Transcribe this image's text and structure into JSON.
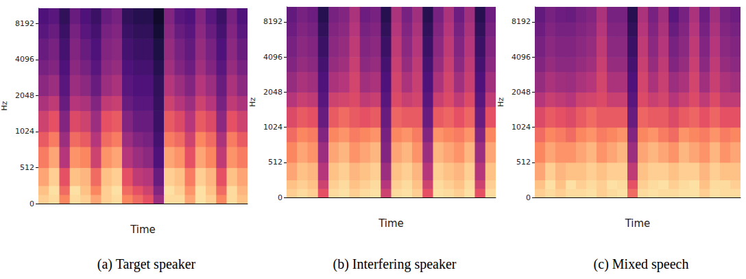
{
  "chart_data": [
    {
      "type": "heatmap",
      "title": "(a) Target speaker",
      "xlabel": "Time",
      "ylabel": "Hz",
      "log": "y",
      "tick_labels": "y",
      "color": "magma",
      "xlim": [
        0,
        20
      ],
      "ylim": [
        0,
        11025
      ],
      "yticks": [
        0,
        512,
        1024,
        2048,
        4096,
        8192
      ],
      "zlim": [
        -80,
        0
      ],
      "time_bins": [
        0,
        1,
        2,
        3,
        4,
        5,
        6,
        7,
        8,
        9,
        10,
        11,
        12,
        13,
        14,
        15,
        16,
        17,
        18,
        19,
        20
      ],
      "freq_bins": [
        0,
        128,
        256,
        512,
        768,
        1024,
        1536,
        2048,
        3072,
        4096,
        6144,
        8192,
        11025
      ],
      "cells": [
        [
          -8,
          -6,
          -20,
          -6,
          -8,
          -15,
          -8,
          -6,
          -20,
          -25,
          -30,
          -45,
          -6,
          -6,
          -15,
          -5,
          -8,
          -20,
          -6,
          -10
        ],
        [
          -10,
          -5,
          -25,
          -5,
          -10,
          -20,
          -8,
          -5,
          -25,
          -30,
          -35,
          -50,
          -5,
          -8,
          -18,
          -5,
          -10,
          -25,
          -6,
          -12
        ],
        [
          -15,
          -8,
          -30,
          -10,
          -12,
          -25,
          -10,
          -8,
          -30,
          -38,
          -40,
          -55,
          -8,
          -10,
          -22,
          -8,
          -12,
          -30,
          -10,
          -15
        ],
        [
          -22,
          -15,
          -40,
          -18,
          -20,
          -35,
          -18,
          -15,
          -40,
          -45,
          -48,
          -60,
          -15,
          -18,
          -30,
          -15,
          -20,
          -38,
          -18,
          -22
        ],
        [
          -28,
          -22,
          -45,
          -25,
          -28,
          -40,
          -25,
          -22,
          -45,
          -50,
          -52,
          -62,
          -22,
          -25,
          -35,
          -20,
          -25,
          -42,
          -22,
          -28
        ],
        [
          -35,
          -30,
          -50,
          -32,
          -35,
          -45,
          -30,
          -28,
          -50,
          -55,
          -55,
          -64,
          -28,
          -32,
          -40,
          -28,
          -32,
          -48,
          -30,
          -35
        ],
        [
          -42,
          -38,
          -55,
          -40,
          -42,
          -50,
          -38,
          -36,
          -55,
          -58,
          -58,
          -65,
          -35,
          -40,
          -45,
          -35,
          -40,
          -52,
          -38,
          -42
        ],
        [
          -48,
          -45,
          -58,
          -45,
          -48,
          -55,
          -45,
          -42,
          -58,
          -60,
          -60,
          -66,
          -40,
          -45,
          -50,
          -40,
          -45,
          -55,
          -42,
          -48
        ],
        [
          -52,
          -50,
          -60,
          -48,
          -52,
          -58,
          -48,
          -46,
          -60,
          -62,
          -62,
          -68,
          -44,
          -50,
          -54,
          -44,
          -50,
          -58,
          -46,
          -52
        ],
        [
          -55,
          -52,
          -62,
          -50,
          -55,
          -60,
          -50,
          -48,
          -62,
          -64,
          -64,
          -70,
          -46,
          -52,
          -56,
          -46,
          -52,
          -60,
          -48,
          -55
        ],
        [
          -58,
          -55,
          -64,
          -52,
          -58,
          -62,
          -52,
          -50,
          -64,
          -66,
          -66,
          -72,
          -48,
          -55,
          -58,
          -48,
          -55,
          -62,
          -50,
          -58
        ],
        [
          -60,
          -58,
          -66,
          -55,
          -60,
          -64,
          -55,
          -52,
          -66,
          -68,
          -68,
          -74,
          -50,
          -58,
          -60,
          -50,
          -58,
          -64,
          -52,
          -60
        ]
      ]
    },
    {
      "type": "heatmap",
      "title": "(b) Interfering speaker",
      "xlabel": "Time",
      "ylabel": "Hz",
      "log": "y",
      "tick_labels": "y",
      "color": "magma",
      "xlim": [
        0,
        20
      ],
      "ylim": [
        0,
        11025
      ],
      "yticks": [
        0,
        512,
        1024,
        2048,
        4096,
        8192
      ],
      "zlim": [
        -80,
        0
      ],
      "time_bins": [
        0,
        1,
        2,
        3,
        4,
        5,
        6,
        7,
        8,
        9,
        10,
        11,
        12,
        13,
        14,
        15,
        16,
        17,
        18,
        19,
        20
      ],
      "freq_bins": [
        0,
        128,
        256,
        512,
        768,
        1024,
        1536,
        2048,
        3072,
        4096,
        6144,
        8192,
        11025
      ],
      "cells": [
        [
          -8,
          -6,
          -8,
          -30,
          -6,
          -5,
          -8,
          -6,
          -5,
          -35,
          -6,
          -5,
          -8,
          -30,
          -5,
          -6,
          -8,
          -5,
          -30,
          -6
        ],
        [
          -10,
          -8,
          -10,
          -35,
          -8,
          -6,
          -10,
          -8,
          -6,
          -40,
          -8,
          -6,
          -10,
          -35,
          -6,
          -8,
          -10,
          -6,
          -35,
          -8
        ],
        [
          -15,
          -10,
          -12,
          -40,
          -10,
          -8,
          -12,
          -10,
          -8,
          -45,
          -10,
          -8,
          -12,
          -40,
          -8,
          -10,
          -12,
          -8,
          -40,
          -10
        ],
        [
          -20,
          -15,
          -18,
          -45,
          -15,
          -12,
          -18,
          -15,
          -12,
          -50,
          -15,
          -12,
          -18,
          -45,
          -12,
          -15,
          -18,
          -12,
          -45,
          -15
        ],
        [
          -25,
          -20,
          -22,
          -50,
          -20,
          -18,
          -22,
          -20,
          -18,
          -52,
          -20,
          -18,
          -22,
          -50,
          -18,
          -20,
          -22,
          -18,
          -50,
          -20
        ],
        [
          -32,
          -28,
          -30,
          -55,
          -28,
          -25,
          -28,
          -30,
          -28,
          -55,
          -26,
          -28,
          -28,
          -55,
          -28,
          -26,
          -30,
          -26,
          -55,
          -30
        ],
        [
          -40,
          -36,
          -38,
          -58,
          -35,
          -34,
          -32,
          -38,
          -36,
          -58,
          -32,
          -36,
          -34,
          -58,
          -36,
          -32,
          -38,
          -32,
          -58,
          -38
        ],
        [
          -46,
          -42,
          -44,
          -60,
          -42,
          -40,
          -34,
          -44,
          -42,
          -60,
          -34,
          -42,
          -36,
          -60,
          -42,
          -34,
          -44,
          -36,
          -60,
          -44
        ],
        [
          -50,
          -46,
          -48,
          -62,
          -46,
          -44,
          -36,
          -48,
          -46,
          -62,
          -36,
          -46,
          -38,
          -62,
          -46,
          -36,
          -48,
          -38,
          -62,
          -48
        ],
        [
          -52,
          -48,
          -50,
          -64,
          -48,
          -46,
          -38,
          -50,
          -48,
          -64,
          -38,
          -48,
          -40,
          -64,
          -48,
          -38,
          -50,
          -40,
          -64,
          -50
        ],
        [
          -54,
          -50,
          -52,
          -66,
          -50,
          -48,
          -40,
          -52,
          -50,
          -66,
          -40,
          -50,
          -42,
          -66,
          -50,
          -40,
          -52,
          -42,
          -66,
          -52
        ],
        [
          -56,
          -52,
          -54,
          -68,
          -52,
          -50,
          -42,
          -54,
          -52,
          -68,
          -42,
          -52,
          -44,
          -68,
          -52,
          -42,
          -54,
          -44,
          -68,
          -54
        ]
      ]
    },
    {
      "type": "heatmap",
      "title": "(c) Mixed speech",
      "xlabel": "Time",
      "ylabel": "Hz",
      "log": "y",
      "tick_labels": "y",
      "color": "magma",
      "xlim": [
        0,
        20
      ],
      "ylim": [
        0,
        11025
      ],
      "yticks": [
        0,
        512,
        1024,
        2048,
        4096,
        8192
      ],
      "zlim": [
        -80,
        0
      ],
      "time_bins": [
        0,
        1,
        2,
        3,
        4,
        5,
        6,
        7,
        8,
        9,
        10,
        11,
        12,
        13,
        14,
        15,
        16,
        17,
        18,
        19,
        20
      ],
      "freq_bins": [
        0,
        128,
        256,
        512,
        768,
        1024,
        1536,
        2048,
        3072,
        4096,
        6144,
        8192,
        11025
      ],
      "cells": [
        [
          -8,
          -6,
          -8,
          -6,
          -6,
          -5,
          -8,
          -6,
          -5,
          -25,
          -6,
          -5,
          -6,
          -6,
          -5,
          -5,
          -8,
          -5,
          -6,
          -6
        ],
        [
          -10,
          -5,
          -10,
          -5,
          -8,
          -6,
          -8,
          -5,
          -6,
          -30,
          -8,
          -6,
          -5,
          -8,
          -6,
          -5,
          -10,
          -6,
          -6,
          -8
        ],
        [
          -15,
          -8,
          -12,
          -10,
          -10,
          -8,
          -10,
          -8,
          -8,
          -38,
          -10,
          -8,
          -8,
          -10,
          -8,
          -8,
          -12,
          -8,
          -10,
          -10
        ],
        [
          -20,
          -15,
          -18,
          -18,
          -15,
          -12,
          -18,
          -15,
          -12,
          -45,
          -15,
          -12,
          -15,
          -18,
          -12,
          -15,
          -18,
          -12,
          -18,
          -15
        ],
        [
          -25,
          -20,
          -22,
          -25,
          -20,
          -18,
          -22,
          -20,
          -18,
          -50,
          -20,
          -18,
          -22,
          -25,
          -18,
          -20,
          -22,
          -18,
          -22,
          -20
        ],
        [
          -32,
          -28,
          -30,
          -32,
          -28,
          -25,
          -28,
          -28,
          -28,
          -55,
          -26,
          -28,
          -28,
          -32,
          -28,
          -26,
          -30,
          -26,
          -30,
          -30
        ],
        [
          -40,
          -36,
          -38,
          -40,
          -35,
          -34,
          -32,
          -36,
          -36,
          -58,
          -32,
          -36,
          -34,
          -40,
          -36,
          -32,
          -38,
          -32,
          -38,
          -38
        ],
        [
          -46,
          -42,
          -44,
          -45,
          -42,
          -40,
          -34,
          -42,
          -42,
          -60,
          -34,
          -42,
          -36,
          -45,
          -42,
          -34,
          -44,
          -36,
          -42,
          -44
        ],
        [
          -50,
          -46,
          -48,
          -48,
          -46,
          -44,
          -36,
          -46,
          -46,
          -62,
          -36,
          -46,
          -38,
          -50,
          -46,
          -36,
          -48,
          -38,
          -46,
          -48
        ],
        [
          -52,
          -48,
          -50,
          -50,
          -48,
          -46,
          -38,
          -48,
          -48,
          -64,
          -38,
          -48,
          -40,
          -52,
          -48,
          -38,
          -50,
          -40,
          -48,
          -50
        ],
        [
          -54,
          -50,
          -52,
          -52,
          -50,
          -48,
          -40,
          -50,
          -50,
          -66,
          -40,
          -50,
          -42,
          -55,
          -50,
          -40,
          -52,
          -42,
          -50,
          -52
        ],
        [
          -56,
          -52,
          -54,
          -55,
          -52,
          -50,
          -42,
          -52,
          -52,
          -68,
          -42,
          -52,
          -44,
          -58,
          -52,
          -42,
          -54,
          -44,
          -52,
          -54
        ]
      ]
    }
  ]
}
